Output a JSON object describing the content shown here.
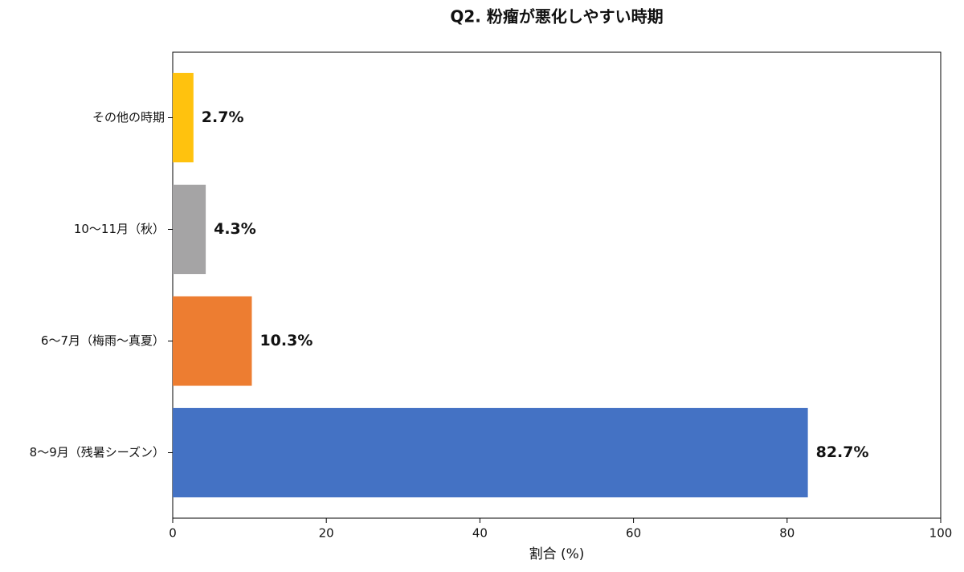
{
  "chart_data": {
    "type": "barh",
    "title": "Q2. 粉瘤が悪化しやすい時期",
    "categories": [
      "その他の時期",
      "10〜11月（秋）",
      "6〜7月（梅雨〜真夏）",
      "8〜9月（残暑シーズン）"
    ],
    "values": [
      2.7,
      4.3,
      10.3,
      82.7
    ],
    "value_labels": [
      "2.7%",
      "4.3%",
      "10.3%",
      "82.7%"
    ],
    "colors": [
      "#ffc20e",
      "#a5a4a5",
      "#ed7d31",
      "#4472c4"
    ],
    "xlabel": "割合 (%)",
    "xlim": [
      0,
      100
    ],
    "xticks": [
      0,
      20,
      40,
      60,
      80,
      100
    ],
    "grid": false
  }
}
